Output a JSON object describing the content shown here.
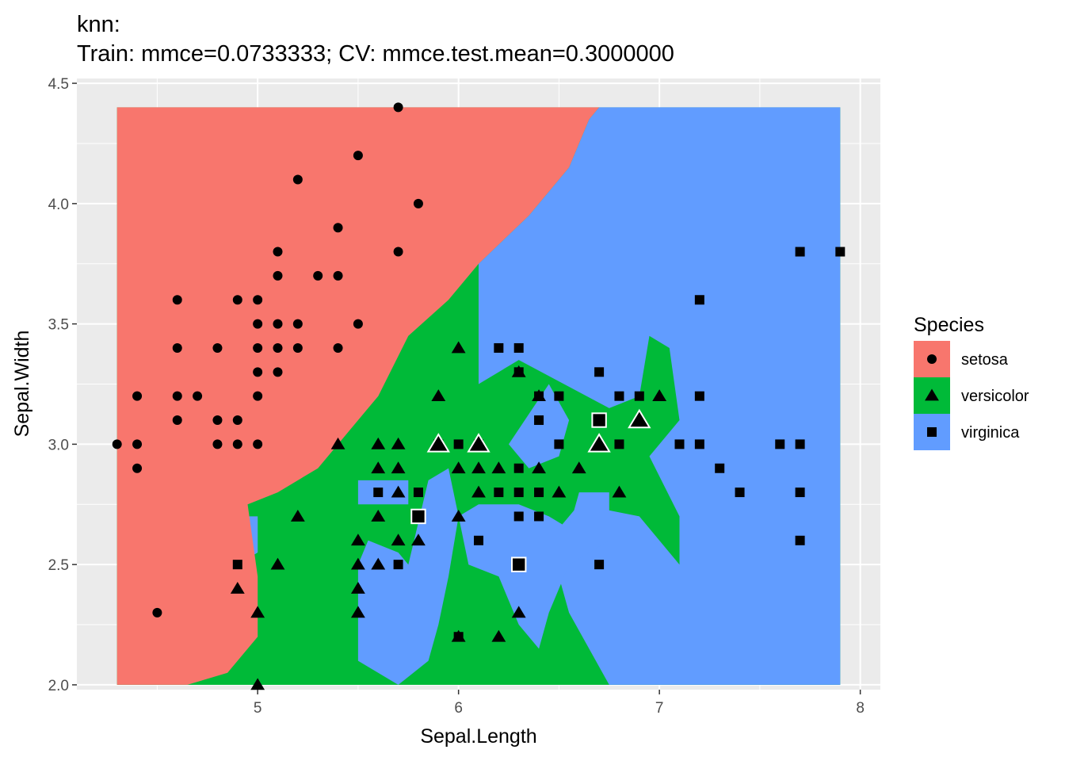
{
  "chart_data": {
    "type": "scatter",
    "title": "knn:",
    "subtitle": "Train: mmce=0.0733333; CV: mmce.test.mean=0.3000000",
    "xlabel": "Sepal.Length",
    "ylabel": "Sepal.Width",
    "xlim": [
      4.1,
      8.1
    ],
    "ylim": [
      1.98,
      4.52
    ],
    "x_ticks": [
      "5",
      "6",
      "7",
      "8"
    ],
    "y_ticks": [
      "2.0",
      "2.5",
      "3.0",
      "3.5",
      "4.0",
      "4.5"
    ],
    "grid": true,
    "legend": {
      "title": "Species",
      "position": "right",
      "items": [
        {
          "label": "setosa",
          "color": "#F8766D",
          "shape": "circle"
        },
        {
          "label": "versicolor",
          "color": "#00BA38",
          "shape": "triangle"
        },
        {
          "label": "virginica",
          "color": "#619CFF",
          "shape": "square"
        }
      ]
    },
    "decision_regions": {
      "x_range": [
        4.3,
        7.9
      ],
      "y_range": [
        2.0,
        4.4
      ],
      "setosa_boundary": [
        [
          4.3,
          2.0
        ],
        [
          4.65,
          2.0
        ],
        [
          4.85,
          2.05
        ],
        [
          5.0,
          2.2
        ],
        [
          5.0,
          2.45
        ],
        [
          4.95,
          2.75
        ],
        [
          5.1,
          2.8
        ],
        [
          5.3,
          2.9
        ],
        [
          5.45,
          3.05
        ],
        [
          5.6,
          3.2
        ],
        [
          5.75,
          3.45
        ],
        [
          5.95,
          3.6
        ],
        [
          6.1,
          3.75
        ],
        [
          6.35,
          3.95
        ],
        [
          6.55,
          4.15
        ],
        [
          6.65,
          4.35
        ],
        [
          6.7,
          4.4
        ],
        [
          4.3,
          4.4
        ]
      ],
      "virginica_boundary": [
        [
          6.1,
          3.75
        ],
        [
          6.35,
          3.95
        ],
        [
          6.55,
          4.15
        ],
        [
          6.65,
          4.35
        ],
        [
          6.7,
          4.4
        ],
        [
          7.9,
          4.4
        ],
        [
          7.9,
          2.0
        ],
        [
          6.75,
          2.0
        ],
        [
          6.55,
          2.3
        ],
        [
          6.45,
          2.6
        ],
        [
          6.6,
          2.75
        ],
        [
          6.9,
          2.7
        ],
        [
          7.1,
          2.5
        ],
        [
          7.1,
          2.7
        ],
        [
          6.95,
          2.95
        ],
        [
          7.1,
          3.1
        ],
        [
          7.05,
          3.4
        ],
        [
          6.95,
          3.45
        ],
        [
          6.9,
          3.2
        ],
        [
          6.75,
          3.15
        ],
        [
          6.3,
          3.35
        ],
        [
          6.1,
          3.25
        ],
        [
          6.1,
          3.6
        ]
      ],
      "virginica_patches": [
        [
          [
            4.9,
            2.5
          ],
          [
            5.0,
            2.55
          ],
          [
            5.0,
            2.7
          ],
          [
            4.9,
            2.7
          ],
          [
            4.7,
            2.6
          ],
          [
            4.6,
            2.7
          ],
          [
            4.6,
            2.5
          ],
          [
            4.7,
            2.45
          ]
        ],
        [
          [
            5.75,
            2.5
          ],
          [
            5.85,
            2.85
          ],
          [
            5.95,
            2.9
          ],
          [
            6.0,
            2.7
          ],
          [
            5.95,
            2.45
          ],
          [
            5.9,
            2.25
          ],
          [
            5.85,
            2.1
          ],
          [
            5.7,
            2.0
          ],
          [
            5.5,
            2.1
          ],
          [
            5.5,
            2.5
          ],
          [
            5.55,
            2.6
          ],
          [
            5.7,
            2.55
          ]
        ],
        [
          [
            5.5,
            2.85
          ],
          [
            5.75,
            2.85
          ],
          [
            5.75,
            2.75
          ],
          [
            5.5,
            2.75
          ]
        ],
        [
          [
            6.0,
            2.7
          ],
          [
            6.1,
            2.75
          ],
          [
            6.3,
            2.75
          ],
          [
            6.45,
            2.7
          ],
          [
            6.55,
            2.65
          ],
          [
            6.6,
            2.8
          ],
          [
            6.75,
            2.8
          ],
          [
            6.75,
            2.6
          ],
          [
            6.55,
            2.5
          ],
          [
            6.45,
            2.3
          ],
          [
            6.4,
            2.15
          ],
          [
            6.3,
            2.25
          ],
          [
            6.2,
            2.45
          ],
          [
            6.05,
            2.5
          ]
        ],
        [
          [
            6.25,
            3.0
          ],
          [
            6.45,
            3.25
          ],
          [
            6.55,
            3.1
          ],
          [
            6.5,
            2.95
          ],
          [
            6.35,
            2.9
          ]
        ]
      ]
    },
    "series": [
      {
        "name": "setosa",
        "shape": "circle",
        "points": [
          [
            4.3,
            3.0
          ],
          [
            4.4,
            2.9
          ],
          [
            4.4,
            3.0
          ],
          [
            4.4,
            3.2
          ],
          [
            4.5,
            2.3
          ],
          [
            4.6,
            3.1
          ],
          [
            4.6,
            3.2
          ],
          [
            4.6,
            3.4
          ],
          [
            4.6,
            3.6
          ],
          [
            4.7,
            3.2
          ],
          [
            4.8,
            3.0
          ],
          [
            4.8,
            3.1
          ],
          [
            4.8,
            3.4
          ],
          [
            4.9,
            3.0
          ],
          [
            4.9,
            3.1
          ],
          [
            4.9,
            3.6
          ],
          [
            5.0,
            3.0
          ],
          [
            5.0,
            3.2
          ],
          [
            5.0,
            3.3
          ],
          [
            5.0,
            3.4
          ],
          [
            5.0,
            3.5
          ],
          [
            5.0,
            3.6
          ],
          [
            5.1,
            3.3
          ],
          [
            5.1,
            3.4
          ],
          [
            5.1,
            3.5
          ],
          [
            5.1,
            3.7
          ],
          [
            5.1,
            3.8
          ],
          [
            5.2,
            3.4
          ],
          [
            5.2,
            3.5
          ],
          [
            5.2,
            4.1
          ],
          [
            5.3,
            3.7
          ],
          [
            5.4,
            3.4
          ],
          [
            5.4,
            3.7
          ],
          [
            5.4,
            3.9
          ],
          [
            5.5,
            3.5
          ],
          [
            5.5,
            4.2
          ],
          [
            5.7,
            3.8
          ],
          [
            5.7,
            4.4
          ],
          [
            5.8,
            4.0
          ]
        ]
      },
      {
        "name": "versicolor",
        "shape": "triangle",
        "points": [
          [
            4.9,
            2.4
          ],
          [
            5.0,
            2.0
          ],
          [
            5.0,
            2.3
          ],
          [
            5.1,
            2.5
          ],
          [
            5.2,
            2.7
          ],
          [
            5.4,
            3.0
          ],
          [
            5.5,
            2.3
          ],
          [
            5.5,
            2.4
          ],
          [
            5.5,
            2.5
          ],
          [
            5.5,
            2.6
          ],
          [
            5.6,
            2.5
          ],
          [
            5.6,
            2.7
          ],
          [
            5.6,
            2.9
          ],
          [
            5.6,
            3.0
          ],
          [
            5.7,
            2.6
          ],
          [
            5.7,
            2.8
          ],
          [
            5.7,
            2.9
          ],
          [
            5.7,
            3.0
          ],
          [
            5.8,
            2.6
          ],
          [
            5.8,
            2.7
          ],
          [
            5.9,
            3.0
          ],
          [
            5.9,
            3.2
          ],
          [
            6.0,
            2.2
          ],
          [
            6.0,
            2.7
          ],
          [
            6.0,
            2.9
          ],
          [
            6.0,
            3.4
          ],
          [
            6.1,
            2.8
          ],
          [
            6.1,
            2.9
          ],
          [
            6.1,
            3.0
          ],
          [
            6.2,
            2.2
          ],
          [
            6.2,
            2.9
          ],
          [
            6.3,
            2.3
          ],
          [
            6.3,
            3.3
          ],
          [
            6.4,
            2.9
          ],
          [
            6.4,
            3.2
          ],
          [
            6.5,
            2.8
          ],
          [
            6.6,
            2.9
          ],
          [
            6.7,
            3.0
          ],
          [
            6.8,
            2.8
          ],
          [
            7.0,
            3.2
          ]
        ]
      },
      {
        "name": "virginica",
        "shape": "square",
        "points": [
          [
            4.9,
            2.5
          ],
          [
            5.6,
            2.8
          ],
          [
            5.7,
            2.5
          ],
          [
            5.8,
            2.8
          ],
          [
            5.9,
            3.0
          ],
          [
            6.0,
            3.0
          ],
          [
            6.0,
            2.2
          ],
          [
            6.1,
            2.6
          ],
          [
            6.1,
            3.0
          ],
          [
            6.2,
            2.8
          ],
          [
            6.2,
            3.4
          ],
          [
            6.3,
            2.5
          ],
          [
            6.3,
            2.7
          ],
          [
            6.3,
            2.8
          ],
          [
            6.3,
            2.9
          ],
          [
            6.3,
            3.3
          ],
          [
            6.3,
            3.4
          ],
          [
            6.4,
            2.7
          ],
          [
            6.4,
            2.8
          ],
          [
            6.4,
            3.1
          ],
          [
            6.4,
            3.2
          ],
          [
            6.5,
            3.0
          ],
          [
            6.5,
            3.2
          ],
          [
            6.7,
            2.5
          ],
          [
            6.7,
            3.3
          ],
          [
            6.8,
            3.0
          ],
          [
            6.8,
            3.2
          ],
          [
            6.9,
            3.2
          ],
          [
            7.1,
            3.0
          ],
          [
            7.2,
            3.0
          ],
          [
            7.2,
            3.2
          ],
          [
            7.2,
            3.6
          ],
          [
            7.3,
            2.9
          ],
          [
            7.4,
            2.8
          ],
          [
            7.6,
            3.0
          ],
          [
            7.7,
            2.6
          ],
          [
            7.7,
            2.8
          ],
          [
            7.7,
            3.0
          ],
          [
            7.7,
            3.8
          ],
          [
            7.9,
            3.8
          ]
        ]
      }
    ],
    "misclassified": [
      {
        "shape": "triangle",
        "x": 5.9,
        "y": 3.0
      },
      {
        "shape": "triangle",
        "x": 6.1,
        "y": 3.0
      },
      {
        "shape": "triangle",
        "x": 6.7,
        "y": 3.0
      },
      {
        "shape": "triangle",
        "x": 6.9,
        "y": 3.1
      },
      {
        "shape": "square",
        "x": 5.8,
        "y": 2.7
      },
      {
        "shape": "square",
        "x": 6.3,
        "y": 2.5
      },
      {
        "shape": "square",
        "x": 6.7,
        "y": 3.1
      }
    ]
  }
}
